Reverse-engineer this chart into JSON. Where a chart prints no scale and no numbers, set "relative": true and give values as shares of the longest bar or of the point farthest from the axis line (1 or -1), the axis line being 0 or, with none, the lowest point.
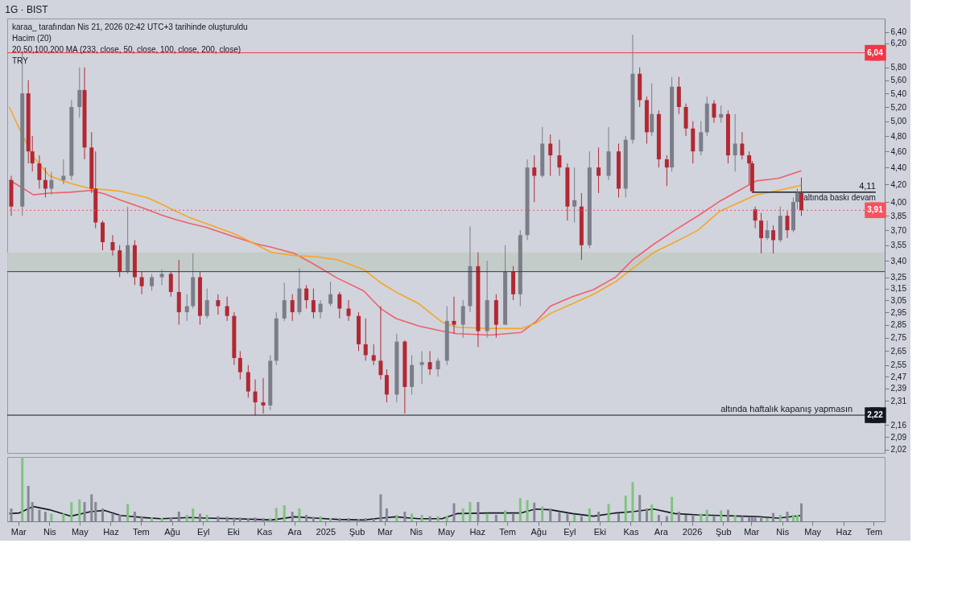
{
  "chart_data": [
    {
      "type": "candlestick",
      "title": "1G · BIST",
      "annotations": [
        "karaa_ tarafından Nis 21, 2026 02:42 UTC+3 tarihinde oluşturuldu",
        "Hacim (20)",
        "20,50,100,200 MA (233, close, 50, close, 100, close, 200, close)",
        "TRY",
        {
          "text": "4,11",
          "x": "2026-07-03",
          "y": 4.11
        },
        {
          "text": "altında baskı devam",
          "x": "2026-07-03",
          "y": 4.11
        },
        {
          "text": "altında haftalık kapanış yapmasın",
          "x": "2026-06-10",
          "y": 2.22
        }
      ],
      "xlim": [
        "2024-02-19",
        "2026-07-12"
      ],
      "x": [
        "2024-02-23",
        "2024-03-05",
        "2024-03-11",
        "2024-03-15",
        "2024-03-22",
        "2024-03-28",
        "2024-04-03",
        "2024-04-15",
        "2024-04-23",
        "2024-05-01",
        "2024-05-06",
        "2024-05-13",
        "2024-05-17",
        "2024-05-24",
        "2024-06-03",
        "2024-06-10",
        "2024-06-18",
        "2024-06-25",
        "2024-07-02",
        "2024-07-12",
        "2024-07-22",
        "2024-07-31",
        "2024-08-08",
        "2024-08-16",
        "2024-08-22",
        "2024-08-29",
        "2024-09-05",
        "2024-09-16",
        "2024-09-25",
        "2024-10-02",
        "2024-10-08",
        "2024-10-16",
        "2024-10-23",
        "2024-10-31",
        "2024-11-07",
        "2024-11-13",
        "2024-11-21",
        "2024-11-29",
        "2024-12-06",
        "2024-12-13",
        "2024-12-20",
        "2024-12-27",
        "2025-01-06",
        "2025-01-15",
        "2025-01-24",
        "2025-02-03",
        "2025-02-10",
        "2025-02-18",
        "2025-02-25",
        "2025-03-03",
        "2025-03-13",
        "2025-03-21",
        "2025-03-28",
        "2025-04-07",
        "2025-04-15",
        "2025-04-23",
        "2025-05-02",
        "2025-05-09",
        "2025-05-18",
        "2025-05-25",
        "2025-06-02",
        "2025-06-11",
        "2025-06-20",
        "2025-06-29",
        "2025-07-07",
        "2025-07-14",
        "2025-07-21",
        "2025-07-28",
        "2025-08-05",
        "2025-08-13",
        "2025-08-22",
        "2025-08-30",
        "2025-09-06",
        "2025-09-13",
        "2025-09-21",
        "2025-09-30",
        "2025-10-10",
        "2025-10-20",
        "2025-10-27",
        "2025-11-03",
        "2025-11-10",
        "2025-11-17",
        "2025-11-22",
        "2025-11-29",
        "2025-12-07",
        "2025-12-12",
        "2025-12-19",
        "2025-12-26",
        "2026-01-02",
        "2026-01-10",
        "2026-01-16",
        "2026-01-23",
        "2026-01-30",
        "2026-02-06",
        "2026-02-13",
        "2026-02-20",
        "2026-02-27",
        "2026-03-02",
        "2026-03-05",
        "2026-03-11",
        "2026-03-17",
        "2026-03-23",
        "2026-03-30",
        "2026-04-06",
        "2026-04-12",
        "2026-04-16",
        "2026-04-20"
      ],
      "ohlc": [
        [
          4.25,
          4.3,
          3.85,
          3.95
        ],
        [
          3.95,
          6.04,
          3.85,
          5.4
        ],
        [
          5.4,
          5.6,
          4.45,
          4.6
        ],
        [
          4.6,
          4.8,
          4.35,
          4.45
        ],
        [
          4.45,
          4.55,
          4.15,
          4.25
        ],
        [
          4.25,
          4.4,
          4.05,
          4.15
        ],
        [
          4.15,
          4.35,
          4.08,
          4.25
        ],
        [
          4.25,
          4.5,
          4.2,
          4.3
        ],
        [
          4.3,
          5.3,
          4.25,
          5.2
        ],
        [
          5.2,
          5.8,
          5.05,
          5.45
        ],
        [
          5.45,
          5.8,
          4.5,
          4.65
        ],
        [
          4.65,
          4.85,
          4.1,
          4.15
        ],
        [
          4.15,
          4.6,
          3.72,
          3.78
        ],
        [
          3.78,
          3.8,
          3.5,
          3.58
        ],
        [
          3.58,
          3.65,
          3.45,
          3.5
        ],
        [
          3.5,
          3.55,
          3.25,
          3.3
        ],
        [
          3.3,
          3.95,
          3.28,
          3.55
        ],
        [
          3.55,
          3.6,
          3.18,
          3.25
        ],
        [
          3.25,
          3.3,
          3.1,
          3.17
        ],
        [
          3.17,
          3.28,
          3.13,
          3.25
        ],
        [
          3.25,
          3.32,
          3.18,
          3.28
        ],
        [
          3.28,
          3.3,
          3.08,
          3.12
        ],
        [
          3.12,
          3.41,
          2.85,
          2.95
        ],
        [
          2.95,
          3.1,
          2.88,
          3.0
        ],
        [
          3.0,
          3.47,
          2.98,
          3.25
        ],
        [
          3.25,
          3.3,
          2.85,
          2.92
        ],
        [
          2.92,
          3.15,
          2.9,
          3.05
        ],
        [
          3.05,
          3.1,
          2.93,
          3.0
        ],
        [
          3.0,
          3.08,
          2.88,
          2.92
        ],
        [
          2.92,
          2.95,
          2.55,
          2.6
        ],
        [
          2.6,
          2.65,
          2.45,
          2.5
        ],
        [
          2.5,
          2.55,
          2.33,
          2.37
        ],
        [
          2.37,
          2.45,
          2.22,
          2.3
        ],
        [
          2.3,
          2.46,
          2.23,
          2.28
        ],
        [
          2.28,
          2.62,
          2.25,
          2.58
        ],
        [
          2.58,
          2.95,
          2.55,
          2.9
        ],
        [
          2.9,
          3.2,
          2.88,
          3.05
        ],
        [
          3.05,
          3.1,
          2.88,
          2.95
        ],
        [
          2.95,
          3.33,
          2.93,
          3.15
        ],
        [
          3.15,
          3.18,
          2.98,
          3.05
        ],
        [
          3.05,
          3.15,
          2.9,
          2.95
        ],
        [
          2.95,
          3.05,
          2.9,
          3.02
        ],
        [
          3.02,
          3.21,
          3.0,
          3.1
        ],
        [
          3.1,
          3.12,
          2.9,
          2.98
        ],
        [
          2.98,
          3.05,
          2.88,
          2.92
        ],
        [
          2.92,
          2.95,
          2.65,
          2.7
        ],
        [
          2.7,
          2.9,
          2.58,
          2.62
        ],
        [
          2.62,
          2.7,
          2.55,
          2.58
        ],
        [
          2.58,
          3.0,
          2.45,
          2.48
        ],
        [
          2.48,
          2.52,
          2.3,
          2.35
        ],
        [
          2.35,
          2.78,
          2.3,
          2.72
        ],
        [
          2.72,
          2.73,
          2.23,
          2.4
        ],
        [
          2.4,
          2.62,
          2.35,
          2.55
        ],
        [
          2.55,
          2.65,
          2.42,
          2.57
        ],
        [
          2.57,
          2.65,
          2.48,
          2.52
        ],
        [
          2.52,
          2.6,
          2.47,
          2.58
        ],
        [
          2.58,
          3.0,
          2.55,
          2.88
        ],
        [
          2.88,
          3.08,
          2.78,
          2.85
        ],
        [
          2.85,
          3.05,
          2.75,
          3.0
        ],
        [
          3.0,
          3.74,
          2.95,
          3.35
        ],
        [
          3.35,
          3.48,
          2.68,
          2.8
        ],
        [
          2.8,
          3.4,
          2.75,
          3.05
        ],
        [
          3.05,
          3.1,
          2.75,
          2.85
        ],
        [
          2.85,
          3.55,
          2.85,
          3.3
        ],
        [
          3.3,
          3.35,
          3.05,
          3.1
        ],
        [
          3.1,
          3.7,
          3.0,
          3.65
        ],
        [
          3.65,
          4.5,
          3.6,
          4.4
        ],
        [
          4.4,
          4.55,
          4.0,
          4.3
        ],
        [
          4.3,
          4.92,
          4.28,
          4.7
        ],
        [
          4.7,
          4.82,
          4.3,
          4.55
        ],
        [
          4.55,
          4.75,
          4.3,
          4.4
        ],
        [
          4.4,
          4.45,
          3.8,
          3.95
        ],
        [
          3.95,
          4.4,
          3.78,
          4.02
        ],
        [
          3.95,
          4.1,
          3.41,
          3.55
        ],
        [
          3.55,
          4.6,
          3.52,
          4.4
        ],
        [
          4.4,
          4.65,
          4.1,
          4.3
        ],
        [
          4.3,
          4.92,
          4.25,
          4.6
        ],
        [
          4.6,
          4.7,
          4.05,
          4.15
        ],
        [
          4.15,
          4.8,
          4.05,
          4.75
        ],
        [
          4.75,
          6.35,
          4.7,
          5.7
        ],
        [
          5.7,
          5.8,
          5.2,
          5.3
        ],
        [
          5.3,
          5.35,
          4.7,
          4.85
        ],
        [
          4.85,
          5.55,
          4.8,
          5.1
        ],
        [
          5.1,
          5.15,
          4.4,
          4.5
        ],
        [
          4.5,
          4.55,
          4.18,
          4.4
        ],
        [
          4.4,
          5.65,
          4.35,
          5.5
        ],
        [
          5.5,
          5.65,
          5.1,
          5.2
        ],
        [
          5.2,
          5.25,
          4.8,
          4.9
        ],
        [
          4.9,
          5.0,
          4.45,
          4.6
        ],
        [
          4.6,
          5.0,
          4.55,
          4.85
        ],
        [
          4.85,
          5.35,
          4.8,
          5.25
        ],
        [
          5.25,
          5.3,
          4.98,
          5.05
        ],
        [
          5.05,
          5.22,
          4.98,
          5.1
        ],
        [
          5.1,
          5.15,
          4.45,
          4.55
        ],
        [
          4.55,
          5.1,
          4.35,
          4.7
        ],
        [
          4.7,
          4.85,
          4.5,
          4.55
        ],
        [
          4.55,
          4.6,
          4.2,
          4.45
        ],
        [
          4.45,
          4.48,
          4.1,
          4.12
        ],
        [
          3.92,
          3.95,
          3.72,
          3.8
        ],
        [
          3.8,
          3.88,
          3.47,
          3.62
        ],
        [
          3.62,
          3.8,
          3.6,
          3.7
        ],
        [
          3.7,
          3.75,
          3.47,
          3.6
        ],
        [
          3.6,
          3.95,
          3.58,
          3.85
        ],
        [
          3.85,
          3.9,
          3.62,
          3.7
        ],
        [
          3.7,
          4.05,
          3.68,
          4.0
        ],
        [
          4.0,
          4.15,
          3.92,
          4.1
        ],
        [
          4.1,
          4.28,
          3.85,
          3.91
        ]
      ],
      "colors": [
        "#b22833",
        "#7b7e88",
        "#b22833",
        "#b22833",
        "#b22833",
        "#b22833",
        "#7b7e88",
        "#7b7e88",
        "#7b7e88",
        "#7b7e88",
        "#b22833",
        "#b22833",
        "#b22833",
        "#b22833",
        "#b22833",
        "#b22833",
        "#7b7e88",
        "#b22833",
        "#b22833",
        "#7b7e88",
        "#7b7e88",
        "#b22833",
        "#b22833",
        "#7b7e88",
        "#7b7e88",
        "#b22833",
        "#7b7e88",
        "#b22833",
        "#b22833",
        "#b22833",
        "#b22833",
        "#b22833",
        "#b22833",
        "#b22833",
        "#7b7e88",
        "#7b7e88",
        "#7b7e88",
        "#b22833",
        "#7b7e88",
        "#b22833",
        "#b22833",
        "#7b7e88",
        "#7b7e88",
        "#b22833",
        "#b22833",
        "#b22833",
        "#b22833",
        "#b22833",
        "#b22833",
        "#b22833",
        "#7b7e88",
        "#b22833",
        "#7b7e88",
        "#7b7e88",
        "#b22833",
        "#7b7e88",
        "#7b7e88",
        "#b22833",
        "#7b7e88",
        "#7b7e88",
        "#b22833",
        "#7b7e88",
        "#b22833",
        "#7b7e88",
        "#b22833",
        "#7b7e88",
        "#7b7e88",
        "#b22833",
        "#7b7e88",
        "#b22833",
        "#b22833",
        "#b22833",
        "#7b7e88",
        "#b22833",
        "#7b7e88",
        "#b22833",
        "#7b7e88",
        "#b22833",
        "#7b7e88",
        "#7b7e88",
        "#b22833",
        "#b22833",
        "#7b7e88",
        "#b22833",
        "#b22833",
        "#7b7e88",
        "#b22833",
        "#b22833",
        "#b22833",
        "#7b7e88",
        "#7b7e88",
        "#b22833",
        "#7b7e88",
        "#b22833",
        "#7b7e88",
        "#b22833",
        "#b22833",
        "#b22833",
        "#b22833",
        "#b22833",
        "#7b7e88",
        "#b22833",
        "#7b7e88",
        "#b22833",
        "#7b7e88",
        "#7b7e88",
        "#b22833"
      ],
      "series": [
        {
          "type": "line",
          "color": "#f0606c",
          "x": [
            "2024-02-21",
            "2024-03-02",
            "2024-03-16",
            "2024-04-01",
            "2024-04-22",
            "2024-05-12",
            "2024-05-26",
            "2024-06-11",
            "2024-07-07",
            "2024-07-21",
            "2024-08-05",
            "2024-08-19",
            "2024-09-04",
            "2024-10-03",
            "2024-10-25",
            "2024-11-08",
            "2024-12-01",
            "2024-12-22",
            "2025-01-13",
            "2025-02-08",
            "2025-02-25",
            "2025-03-12",
            "2025-04-04",
            "2025-04-27",
            "2025-05-12",
            "2025-06-14",
            "2025-07-15",
            "2025-07-29",
            "2025-08-13",
            "2025-09-04",
            "2025-09-25",
            "2025-10-17",
            "2025-11-03",
            "2025-11-24",
            "2025-12-15",
            "2026-01-07",
            "2026-01-29",
            "2026-02-20",
            "2026-03-06",
            "2026-03-28",
            "2026-04-20"
          ],
          "values": [
            4.25,
            4.18,
            4.08,
            4.1,
            4.11,
            4.13,
            4.09,
            4.02,
            3.92,
            3.86,
            3.81,
            3.77,
            3.73,
            3.63,
            3.56,
            3.53,
            3.47,
            3.36,
            3.24,
            3.13,
            2.98,
            2.9,
            2.84,
            2.8,
            2.78,
            2.77,
            2.79,
            2.87,
            3.0,
            3.08,
            3.14,
            3.25,
            3.41,
            3.56,
            3.7,
            3.85,
            4.01,
            4.15,
            4.24,
            4.27,
            4.36
          ]
        },
        {
          "type": "line",
          "color": "#f6a623",
          "x": [
            "2024-02-21",
            "2024-03-02",
            "2024-03-16",
            "2024-04-01",
            "2024-04-22",
            "2024-05-12",
            "2024-05-26",
            "2024-06-11",
            "2024-07-07",
            "2024-07-21",
            "2024-08-05",
            "2024-08-19",
            "2024-09-04",
            "2024-10-03",
            "2024-10-25",
            "2024-11-08",
            "2024-12-01",
            "2024-12-22",
            "2025-01-13",
            "2025-02-08",
            "2025-02-25",
            "2025-03-12",
            "2025-04-04",
            "2025-04-27",
            "2025-05-12",
            "2025-06-14",
            "2025-07-15",
            "2025-07-29",
            "2025-08-13",
            "2025-09-04",
            "2025-09-25",
            "2025-10-17",
            "2025-11-03",
            "2025-11-24",
            "2025-12-15",
            "2026-01-07",
            "2026-01-29",
            "2026-02-20",
            "2026-03-06",
            "2026-03-28",
            "2026-04-20"
          ],
          "values": [
            5.2,
            4.9,
            4.53,
            4.3,
            4.21,
            4.15,
            4.14,
            4.12,
            4.05,
            3.98,
            3.9,
            3.83,
            3.77,
            3.66,
            3.55,
            3.48,
            3.45,
            3.44,
            3.41,
            3.32,
            3.2,
            3.12,
            3.02,
            2.87,
            2.83,
            2.82,
            2.82,
            2.86,
            2.94,
            3.02,
            3.1,
            3.21,
            3.33,
            3.48,
            3.58,
            3.7,
            3.9,
            4.01,
            4.08,
            4.13,
            4.19
          ]
        },
        {
          "type": "line",
          "color": "#363a45",
          "x": [
            "2026-03-02",
            "2026-07-03"
          ],
          "values": [
            4.11,
            4.11
          ]
        }
      ],
      "log": "y",
      "ylim": [
        2.0,
        6.64
      ],
      "yticks": [
        {
          "value": 6.4,
          "label": "6,40"
        },
        {
          "value": 6.2,
          "label": "6,20"
        },
        {
          "value": 5.8,
          "label": "5,80"
        },
        {
          "value": 5.6,
          "label": "5,60"
        },
        {
          "value": 5.4,
          "label": "5,40"
        },
        {
          "value": 5.2,
          "label": "5,20"
        },
        {
          "value": 5.0,
          "label": "5,00"
        },
        {
          "value": 4.8,
          "label": "4,80"
        },
        {
          "value": 4.6,
          "label": "4,60"
        },
        {
          "value": 4.4,
          "label": "4,40"
        },
        {
          "value": 4.2,
          "label": "4,20"
        },
        {
          "value": 4.0,
          "label": "4,00"
        },
        {
          "value": 3.85,
          "label": "3,85"
        },
        {
          "value": 3.7,
          "label": "3,70"
        },
        {
          "value": 3.55,
          "label": "3,55"
        },
        {
          "value": 3.4,
          "label": "3,40"
        },
        {
          "value": 3.25,
          "label": "3,25"
        },
        {
          "value": 3.15,
          "label": "3,15"
        },
        {
          "value": 3.05,
          "label": "3,05"
        },
        {
          "value": 2.95,
          "label": "2,95"
        },
        {
          "value": 2.85,
          "label": "2,85"
        },
        {
          "value": 2.75,
          "label": "2,75"
        },
        {
          "value": 2.65,
          "label": "2,65"
        },
        {
          "value": 2.55,
          "label": "2,55"
        },
        {
          "value": 2.47,
          "label": "2,47"
        },
        {
          "value": 2.39,
          "label": "2,39"
        },
        {
          "value": 2.31,
          "label": "2,31"
        },
        {
          "value": 2.16,
          "label": "2,16"
        },
        {
          "value": 2.09,
          "label": "2,09"
        },
        {
          "value": 2.02,
          "label": "2,02"
        }
      ],
      "ref_lines": [
        {
          "axis": "y",
          "value": 6.04,
          "label": "6,04",
          "color": "#f23645"
        },
        {
          "axis": "y",
          "value": 3.91,
          "label": "3,91",
          "color": "#f7525f",
          "line_style": "dotted"
        },
        {
          "axis": "y",
          "value": 3.3,
          "color": "#363a45"
        },
        {
          "axis": "y",
          "value": 2.22,
          "label": "2,22",
          "color": "#131722"
        }
      ],
      "bands": [
        {
          "axis": "y",
          "from": 3.3,
          "to": 3.48,
          "color": "#c2cbc8"
        }
      ],
      "tick_labels": "y"
    },
    {
      "type": "bar",
      "relative": true,
      "xlim": [
        "2024-02-19",
        "2026-07-12"
      ],
      "x": [
        "2024-02-23",
        "2024-03-05",
        "2024-03-11",
        "2024-03-15",
        "2024-03-22",
        "2024-03-28",
        "2024-04-03",
        "2024-04-15",
        "2024-04-23",
        "2024-05-01",
        "2024-05-06",
        "2024-05-13",
        "2024-05-17",
        "2024-05-24",
        "2024-06-03",
        "2024-06-10",
        "2024-06-18",
        "2024-06-25",
        "2024-07-02",
        "2024-07-12",
        "2024-07-22",
        "2024-07-31",
        "2024-08-08",
        "2024-08-16",
        "2024-08-22",
        "2024-08-29",
        "2024-09-05",
        "2024-09-16",
        "2024-09-25",
        "2024-10-02",
        "2024-10-08",
        "2024-10-16",
        "2024-10-23",
        "2024-10-31",
        "2024-11-07",
        "2024-11-13",
        "2024-11-21",
        "2024-11-29",
        "2024-12-06",
        "2024-12-13",
        "2024-12-20",
        "2024-12-27",
        "2025-01-06",
        "2025-01-15",
        "2025-01-24",
        "2025-02-03",
        "2025-02-10",
        "2025-02-18",
        "2025-02-25",
        "2025-03-03",
        "2025-03-13",
        "2025-03-21",
        "2025-03-28",
        "2025-04-07",
        "2025-04-15",
        "2025-04-23",
        "2025-05-02",
        "2025-05-09",
        "2025-05-18",
        "2025-05-25",
        "2025-06-02",
        "2025-06-11",
        "2025-06-20",
        "2025-06-29",
        "2025-07-07",
        "2025-07-14",
        "2025-07-21",
        "2025-07-28",
        "2025-08-05",
        "2025-08-13",
        "2025-08-22",
        "2025-08-30",
        "2025-09-06",
        "2025-09-13",
        "2025-09-21",
        "2025-09-30",
        "2025-10-10",
        "2025-10-20",
        "2025-10-27",
        "2025-11-03",
        "2025-11-10",
        "2025-11-17",
        "2025-11-22",
        "2025-11-29",
        "2025-12-07",
        "2025-12-12",
        "2025-12-19",
        "2025-12-26",
        "2026-01-02",
        "2026-01-10",
        "2026-01-16",
        "2026-01-23",
        "2026-01-30",
        "2026-02-06",
        "2026-02-13",
        "2026-02-20",
        "2026-02-27",
        "2026-03-02",
        "2026-03-05",
        "2026-03-11",
        "2026-03-17",
        "2026-03-23",
        "2026-03-30",
        "2026-04-06",
        "2026-04-12",
        "2026-04-16",
        "2026-04-20"
      ],
      "values": [
        0.2,
        1.0,
        0.55,
        0.3,
        0.18,
        0.15,
        0.12,
        0.12,
        0.3,
        0.34,
        0.3,
        0.42,
        0.3,
        0.2,
        0.12,
        0.1,
        0.27,
        0.15,
        0.08,
        0.06,
        0.05,
        0.06,
        0.15,
        0.1,
        0.2,
        0.12,
        0.1,
        0.08,
        0.07,
        0.06,
        0.06,
        0.05,
        0.06,
        0.05,
        0.05,
        0.21,
        0.25,
        0.15,
        0.2,
        0.1,
        0.07,
        0.08,
        0.05,
        0.05,
        0.05,
        0.04,
        0.05,
        0.04,
        0.42,
        0.2,
        0.1,
        0.15,
        0.12,
        0.1,
        0.08,
        0.08,
        0.08,
        0.28,
        0.2,
        0.3,
        0.3,
        0.12,
        0.1,
        0.17,
        0.12,
        0.36,
        0.33,
        0.29,
        0.23,
        0.2,
        0.15,
        0.12,
        0.1,
        0.08,
        0.2,
        0.15,
        0.27,
        0.12,
        0.4,
        0.61,
        0.41,
        0.2,
        0.26,
        0.1,
        0.08,
        0.38,
        0.15,
        0.1,
        0.1,
        0.12,
        0.18,
        0.08,
        0.17,
        0.18,
        0.1,
        0.08,
        0.07,
        0.06,
        0.06,
        0.05,
        0.05,
        0.13,
        0.1,
        0.15,
        0.1,
        0.1,
        0.28
      ],
      "colors": [
        "#868993",
        "#7fc480",
        "#868993",
        "#868993",
        "#868993",
        "#868993",
        "#7fc480",
        "#7fc480",
        "#7fc480",
        "#7fc480",
        "#868993",
        "#868993",
        "#868993",
        "#868993",
        "#868993",
        "#868993",
        "#7fc480",
        "#868993",
        "#868993",
        "#7fc480",
        "#7fc480",
        "#868993",
        "#868993",
        "#7fc480",
        "#7fc480",
        "#868993",
        "#7fc480",
        "#868993",
        "#868993",
        "#868993",
        "#868993",
        "#868993",
        "#868993",
        "#868993",
        "#7fc480",
        "#7fc480",
        "#7fc480",
        "#868993",
        "#7fc480",
        "#868993",
        "#868993",
        "#7fc480",
        "#7fc480",
        "#868993",
        "#868993",
        "#868993",
        "#868993",
        "#868993",
        "#868993",
        "#868993",
        "#7fc480",
        "#868993",
        "#7fc480",
        "#7fc480",
        "#868993",
        "#7fc480",
        "#7fc480",
        "#868993",
        "#7fc480",
        "#7fc480",
        "#868993",
        "#7fc480",
        "#868993",
        "#7fc480",
        "#868993",
        "#7fc480",
        "#7fc480",
        "#868993",
        "#7fc480",
        "#868993",
        "#868993",
        "#868993",
        "#7fc480",
        "#868993",
        "#7fc480",
        "#868993",
        "#7fc480",
        "#868993",
        "#7fc480",
        "#7fc480",
        "#868993",
        "#868993",
        "#7fc480",
        "#868993",
        "#868993",
        "#7fc480",
        "#868993",
        "#868993",
        "#868993",
        "#7fc480",
        "#7fc480",
        "#868993",
        "#7fc480",
        "#868993",
        "#7fc480",
        "#868993",
        "#868993",
        "#868993",
        "#868993",
        "#868993",
        "#7fc480",
        "#868993",
        "#7fc480",
        "#868993",
        "#7fc480",
        "#7fc480",
        "#868993"
      ],
      "series": [
        {
          "type": "line",
          "color": "#131722",
          "x": [
            "2024-02-21",
            "2024-03-02",
            "2024-03-16",
            "2024-04-01",
            "2024-04-22",
            "2024-05-12",
            "2024-05-26",
            "2024-06-11",
            "2024-07-07",
            "2024-07-21",
            "2024-08-05",
            "2024-08-19",
            "2024-09-04",
            "2024-10-03",
            "2024-10-25",
            "2024-11-08",
            "2024-12-01",
            "2024-12-22",
            "2025-01-13",
            "2025-02-08",
            "2025-02-25",
            "2025-03-12",
            "2025-04-04",
            "2025-04-27",
            "2025-05-12",
            "2025-06-14",
            "2025-07-15",
            "2025-07-29",
            "2025-08-13",
            "2025-09-04",
            "2025-09-25",
            "2025-10-17",
            "2025-11-03",
            "2025-11-24",
            "2025-12-15",
            "2026-01-07",
            "2026-01-29",
            "2026-02-20",
            "2026-03-06",
            "2026-03-28",
            "2026-04-20"
          ],
          "values": [
            0.12,
            0.13,
            0.23,
            0.18,
            0.08,
            0.15,
            0.17,
            0.09,
            0.055,
            0.04,
            0.05,
            0.06,
            0.05,
            0.04,
            0.03,
            0.02,
            0.07,
            0.05,
            0.03,
            0.02,
            0.05,
            0.07,
            0.04,
            0.04,
            0.12,
            0.13,
            0.13,
            0.19,
            0.18,
            0.12,
            0.08,
            0.13,
            0.15,
            0.19,
            0.12,
            0.1,
            0.09,
            0.08,
            0.075,
            0.05,
            0.09
          ]
        }
      ],
      "xticks": [
        {
          "value": "2024-03-01",
          "label": "Mar"
        },
        {
          "value": "2024-04-01",
          "label": "Nis"
        },
        {
          "value": "2024-05-01",
          "label": "May"
        },
        {
          "value": "2024-06-01",
          "label": "Haz"
        },
        {
          "value": "2024-07-01",
          "label": "Tem"
        },
        {
          "value": "2024-08-01",
          "label": "Ağu"
        },
        {
          "value": "2024-09-01",
          "label": "Eyl"
        },
        {
          "value": "2024-10-01",
          "label": "Eki"
        },
        {
          "value": "2024-11-01",
          "label": "Kas"
        },
        {
          "value": "2024-12-01",
          "label": "Ara"
        },
        {
          "value": "2025-01-01",
          "label": "2025"
        },
        {
          "value": "2025-02-01",
          "label": "Şub"
        },
        {
          "value": "2025-03-01",
          "label": "Mar"
        },
        {
          "value": "2025-04-01",
          "label": "Nis"
        },
        {
          "value": "2025-05-01",
          "label": "May"
        },
        {
          "value": "2025-06-01",
          "label": "Haz"
        },
        {
          "value": "2025-07-01",
          "label": "Tem"
        },
        {
          "value": "2025-08-01",
          "label": "Ağu"
        },
        {
          "value": "2025-09-01",
          "label": "Eyl"
        },
        {
          "value": "2025-10-01",
          "label": "Eki"
        },
        {
          "value": "2025-11-01",
          "label": "Kas"
        },
        {
          "value": "2025-12-01",
          "label": "Ara"
        },
        {
          "value": "2026-01-01",
          "label": "2026"
        },
        {
          "value": "2026-02-01",
          "label": "Şub"
        },
        {
          "value": "2026-03-01",
          "label": "Mar"
        },
        {
          "value": "2026-04-01",
          "label": "Nis"
        },
        {
          "value": "2026-05-01",
          "label": "May"
        },
        {
          "value": "2026-06-01",
          "label": "Haz"
        },
        {
          "value": "2026-07-01",
          "label": "Tem"
        }
      ],
      "tick_labels": "x"
    }
  ]
}
